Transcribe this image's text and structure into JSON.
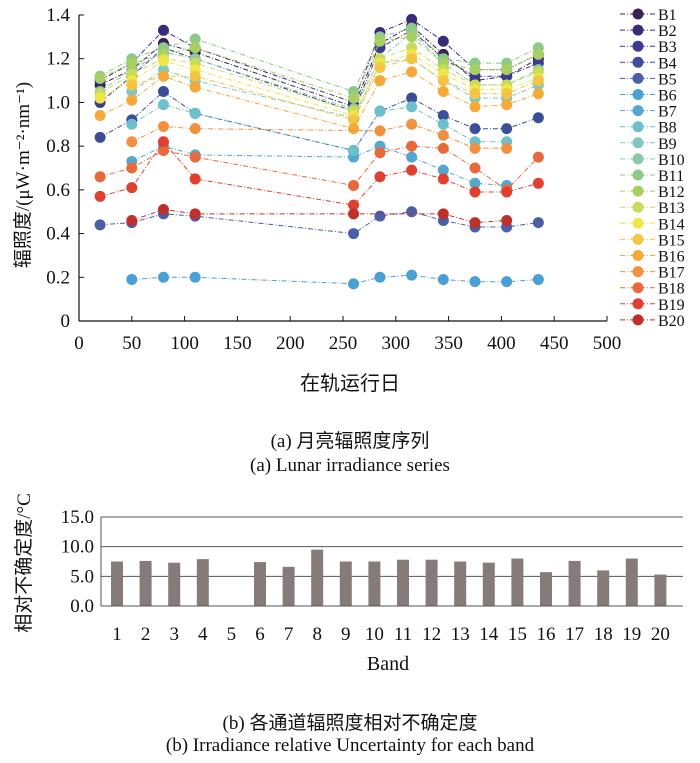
{
  "chart_data": [
    {
      "type": "line",
      "title": "",
      "xlabel": "在轨运行日",
      "ylabel": "辐照度/(μW·m⁻²·nm⁻¹)",
      "xlim": [
        0,
        500
      ],
      "ylim": [
        0,
        1.4
      ],
      "x_ticks": [
        "0",
        "50",
        "100",
        "150",
        "200",
        "250",
        "300",
        "350",
        "400",
        "450",
        "500"
      ],
      "y_ticks": [
        "0",
        "0.2",
        "0.4",
        "0.6",
        "0.8",
        "1.0",
        "1.2",
        "1.4"
      ],
      "legend_position": "right",
      "x": [
        20,
        50,
        80,
        110,
        260,
        285,
        315,
        345,
        375,
        405,
        435
      ],
      "series": [
        {
          "name": "B1",
          "color": "#3a2350",
          "values": [
            1.08,
            1.15,
            1.27,
            1.23,
            0.98,
            1.27,
            1.35,
            1.22,
            1.1,
            1.12,
            1.2
          ]
        },
        {
          "name": "B2",
          "color": "#3a2a7a",
          "values": [
            1.1,
            1.18,
            1.33,
            1.25,
            1.0,
            1.32,
            1.38,
            1.28,
            1.15,
            1.15,
            1.22
          ]
        },
        {
          "name": "B3",
          "color": "#3e3a92",
          "values": [
            1.0,
            1.12,
            1.25,
            1.2,
            0.96,
            1.25,
            1.33,
            1.2,
            1.12,
            1.12,
            1.18
          ]
        },
        {
          "name": "B4",
          "color": "#3d4e98",
          "values": [
            0.84,
            0.92,
            1.05,
            0.95,
            0.78,
            0.96,
            1.02,
            0.94,
            0.88,
            0.88,
            0.93
          ]
        },
        {
          "name": "B5",
          "color": "#4a5fa6",
          "values": [
            0.44,
            0.45,
            0.49,
            0.48,
            0.4,
            0.48,
            0.5,
            0.46,
            0.43,
            0.43,
            0.45
          ]
        },
        {
          "name": "B6",
          "color": "#4a9fd4",
          "values": [
            null,
            0.19,
            0.2,
            0.2,
            0.17,
            0.2,
            0.21,
            0.19,
            0.18,
            0.18,
            0.19
          ]
        },
        {
          "name": "B7",
          "color": "#55a7cd",
          "values": [
            null,
            0.73,
            0.8,
            0.76,
            0.75,
            0.8,
            0.75,
            0.69,
            0.63,
            0.62,
            null
          ]
        },
        {
          "name": "B8",
          "color": "#6cbfcc",
          "values": [
            null,
            0.9,
            0.99,
            0.95,
            0.78,
            0.96,
            0.98,
            0.9,
            0.82,
            0.82,
            null
          ]
        },
        {
          "name": "B9",
          "color": "#7fc7c0",
          "values": [
            null,
            1.05,
            1.15,
            1.1,
            0.93,
            1.18,
            1.2,
            1.1,
            1.02,
            1.02,
            1.08
          ]
        },
        {
          "name": "B10",
          "color": "#8bc9a6",
          "values": [
            1.05,
            1.15,
            1.23,
            1.2,
            0.97,
            1.2,
            1.32,
            1.18,
            1.08,
            1.08,
            1.15
          ]
        },
        {
          "name": "B11",
          "color": "#8fc98a",
          "values": [
            1.12,
            1.2,
            1.25,
            1.29,
            1.05,
            1.3,
            1.34,
            1.2,
            1.18,
            1.18,
            1.25
          ]
        },
        {
          "name": "B12",
          "color": "#a8cf62",
          "values": [
            1.11,
            1.18,
            1.22,
            1.25,
            1.02,
            1.28,
            1.3,
            1.18,
            1.15,
            1.15,
            1.22
          ]
        },
        {
          "name": "B13",
          "color": "#c9dc5a",
          "values": [
            1.04,
            1.13,
            1.2,
            1.18,
            0.96,
            1.2,
            1.25,
            1.15,
            1.08,
            1.08,
            1.14
          ]
        },
        {
          "name": "B14",
          "color": "#eee64a",
          "values": [
            1.02,
            1.1,
            1.19,
            1.15,
            0.94,
            1.18,
            1.22,
            1.13,
            1.06,
            1.06,
            1.11
          ]
        },
        {
          "name": "B15",
          "color": "#f4c446",
          "values": [
            null,
            1.08,
            1.12,
            1.12,
            0.92,
            1.16,
            1.2,
            1.1,
            1.04,
            1.04,
            1.1
          ]
        },
        {
          "name": "B16",
          "color": "#f4a93a",
          "values": [
            0.94,
            1.01,
            1.12,
            1.07,
            0.88,
            1.1,
            1.14,
            1.05,
            0.98,
            0.99,
            1.04
          ]
        },
        {
          "name": "B17",
          "color": "#f29040",
          "values": [
            null,
            0.82,
            0.89,
            0.88,
            null,
            0.87,
            0.9,
            0.85,
            0.79,
            0.79,
            null
          ]
        },
        {
          "name": "B18",
          "color": "#e86a3c",
          "values": [
            0.66,
            0.7,
            0.78,
            0.75,
            0.62,
            0.77,
            0.8,
            0.79,
            0.7,
            0.6,
            0.75
          ]
        },
        {
          "name": "B19",
          "color": "#e04030",
          "values": [
            0.57,
            0.61,
            0.82,
            0.65,
            0.53,
            0.66,
            0.69,
            0.65,
            0.59,
            0.59,
            0.63
          ]
        },
        {
          "name": "B20",
          "color": "#c0302a",
          "values": [
            null,
            0.46,
            0.51,
            0.49,
            0.49,
            null,
            null,
            0.49,
            0.45,
            0.46,
            null
          ]
        }
      ]
    },
    {
      "type": "bar",
      "title": "",
      "xlabel": "Band",
      "ylabel": "相对不确定度/°C",
      "ylim": [
        0,
        15
      ],
      "y_ticks": [
        "0.0",
        "5.0",
        "10.0",
        "15.0"
      ],
      "categories": [
        "1",
        "2",
        "3",
        "4",
        "5",
        "6",
        "7",
        "8",
        "9",
        "10",
        "11",
        "12",
        "13",
        "14",
        "15",
        "16",
        "17",
        "18",
        "19",
        "20"
      ],
      "values": [
        7.5,
        7.6,
        7.3,
        7.9,
        null,
        7.4,
        6.6,
        9.5,
        7.5,
        7.5,
        7.8,
        7.8,
        7.5,
        7.3,
        8.0,
        5.7,
        7.6,
        6.0,
        8.0,
        5.3
      ],
      "bar_color": "#857b78",
      "gridlines": [
        5,
        10,
        15
      ]
    }
  ],
  "captions": {
    "a_cn": "(a) 月亮辐照度序列",
    "a_en": "(a) Lunar irradiance series",
    "b_cn": "(b) 各通道辐照度相对不确定度",
    "b_en": "(b) Irradiance relative Uncertainty for each band"
  }
}
